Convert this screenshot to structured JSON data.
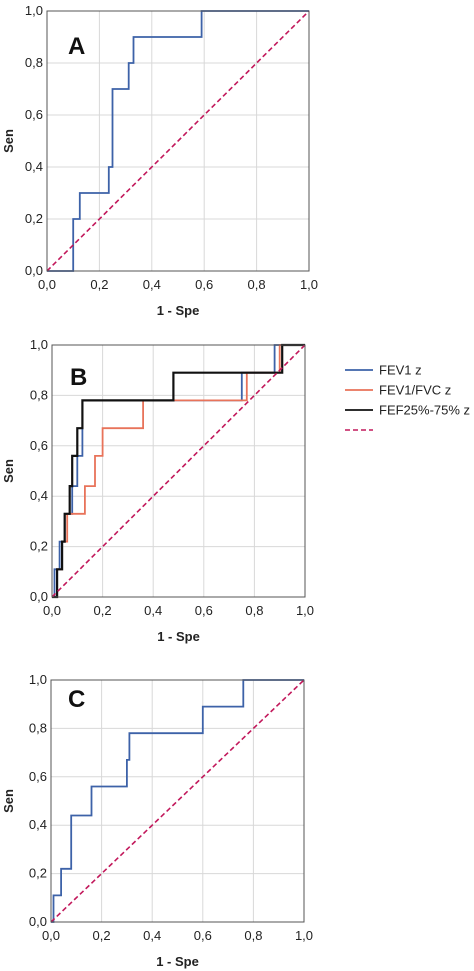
{
  "chart_data": [
    {
      "type": "line",
      "panel_label": "A",
      "xlabel": "1 - Spe",
      "ylabel": "Sen",
      "xlim": [
        0,
        1
      ],
      "ylim": [
        0,
        1
      ],
      "xticks": [
        "0,0",
        "0,2",
        "0,4",
        "0,6",
        "0,8",
        "1,0"
      ],
      "yticks": [
        "0,0",
        "0,2",
        "0,4",
        "0,6",
        "0,8",
        "1,0"
      ],
      "grid": true,
      "series": [
        {
          "color": "#3d62a8",
          "x": [
            0,
            0.1,
            0.1,
            0.1,
            0.125,
            0.125,
            0.236,
            0.236,
            0.25,
            0.25,
            0.312,
            0.312,
            0.33,
            0.33,
            0.59,
            0.59,
            1.0
          ],
          "y": [
            0,
            0,
            0.1,
            0.2,
            0.2,
            0.3,
            0.3,
            0.4,
            0.4,
            0.7,
            0.7,
            0.8,
            0.8,
            0.9,
            0.9,
            1.0,
            1.0
          ]
        },
        {
          "color": "#c2185b",
          "dashed": true,
          "x": [
            0,
            1
          ],
          "y": [
            0,
            1
          ]
        }
      ]
    },
    {
      "type": "line",
      "panel_label": "B",
      "xlabel": "1 - Spe",
      "ylabel": "Sen",
      "xlim": [
        0,
        1
      ],
      "ylim": [
        0,
        1
      ],
      "xticks": [
        "0,0",
        "0,2",
        "0,4",
        "0,6",
        "0,8",
        "1,0"
      ],
      "yticks": [
        "0,0",
        "0,2",
        "0,4",
        "0,6",
        "0,8",
        "1,0"
      ],
      "grid": true,
      "legend_position": "right",
      "series": [
        {
          "name": "FEV1 z",
          "color": "#3d62a8",
          "x": [
            0,
            0.01,
            0.01,
            0.03,
            0.03,
            0.05,
            0.05,
            0.08,
            0.08,
            0.1,
            0.1,
            0.12,
            0.12,
            0.5,
            0.5,
            0.75,
            0.75,
            0.88,
            0.88,
            1.0
          ],
          "y": [
            0,
            0,
            0.11,
            0.11,
            0.22,
            0.22,
            0.33,
            0.33,
            0.44,
            0.44,
            0.56,
            0.56,
            0.78,
            0.78,
            0.78,
            0.78,
            0.89,
            0.89,
            1.0,
            1.0
          ]
        },
        {
          "name": "FEV1/FVC z",
          "color": "#e8735a",
          "x": [
            0,
            0.02,
            0.02,
            0.04,
            0.04,
            0.06,
            0.06,
            0.13,
            0.13,
            0.17,
            0.17,
            0.2,
            0.2,
            0.36,
            0.36,
            0.77,
            0.77,
            0.9,
            0.9,
            1.0
          ],
          "y": [
            0,
            0,
            0.11,
            0.11,
            0.22,
            0.22,
            0.33,
            0.33,
            0.44,
            0.44,
            0.56,
            0.56,
            0.67,
            0.67,
            0.78,
            0.78,
            0.89,
            0.89,
            1.0,
            1.0
          ]
        },
        {
          "name": "FEF25%-75% z",
          "color": "#111111",
          "x": [
            0,
            0.02,
            0.02,
            0.04,
            0.04,
            0.05,
            0.05,
            0.07,
            0.07,
            0.08,
            0.08,
            0.1,
            0.1,
            0.12,
            0.12,
            0.14,
            0.14,
            0.48,
            0.48,
            0.89,
            0.89,
            0.91,
            0.91,
            1.0
          ],
          "y": [
            0,
            0,
            0.11,
            0.11,
            0.22,
            0.22,
            0.33,
            0.33,
            0.44,
            0.44,
            0.56,
            0.56,
            0.67,
            0.67,
            0.78,
            0.78,
            0.78,
            0.78,
            0.89,
            0.89,
            0.89,
            0.89,
            1.0,
            1.0
          ]
        },
        {
          "name": "",
          "color": "#c2185b",
          "dashed": true,
          "x": [
            0,
            1
          ],
          "y": [
            0,
            1
          ]
        }
      ]
    },
    {
      "type": "line",
      "panel_label": "C",
      "xlabel": "1 - Spe",
      "ylabel": "Sen",
      "xlim": [
        0,
        1
      ],
      "ylim": [
        0,
        1
      ],
      "xticks": [
        "0,0",
        "0,2",
        "0,4",
        "0,6",
        "0,8",
        "1,0"
      ],
      "yticks": [
        "0,0",
        "0,2",
        "0,4",
        "0,6",
        "0,8",
        "1,0"
      ],
      "grid": true,
      "series": [
        {
          "color": "#3d62a8",
          "x": [
            0,
            0.01,
            0.01,
            0.04,
            0.04,
            0.08,
            0.08,
            0.16,
            0.16,
            0.3,
            0.3,
            0.31,
            0.31,
            0.32,
            0.32,
            0.6,
            0.6,
            0.76,
            0.76,
            1.0
          ],
          "y": [
            0,
            0,
            0.11,
            0.11,
            0.22,
            0.22,
            0.44,
            0.44,
            0.56,
            0.56,
            0.67,
            0.67,
            0.78,
            0.78,
            0.78,
            0.78,
            0.89,
            0.89,
            1.0,
            1.0
          ]
        },
        {
          "color": "#c2185b",
          "dashed": true,
          "x": [
            0,
            1
          ],
          "y": [
            0,
            1
          ]
        }
      ]
    }
  ]
}
